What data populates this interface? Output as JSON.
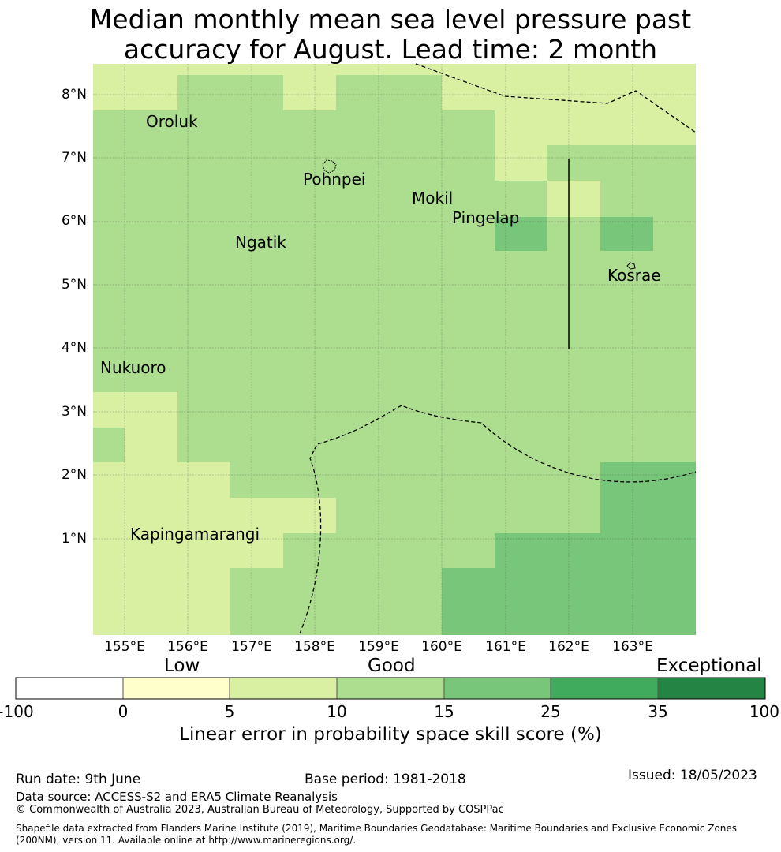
{
  "title": {
    "line1": "Median monthly mean sea level pressure past",
    "line2": "accuracy for August. Lead time: 2 month"
  },
  "map": {
    "lat_labels": [
      "8°N",
      "7°N",
      "6°N",
      "5°N",
      "4°N",
      "3°N",
      "2°N",
      "1°N"
    ],
    "lon_labels": [
      "155°E",
      "156°E",
      "157°E",
      "158°E",
      "159°E",
      "160°E",
      "161°E",
      "162°E",
      "163°E"
    ],
    "places": [
      {
        "name": "Oroluk"
      },
      {
        "name": "Pohnpei"
      },
      {
        "name": "Mokil"
      },
      {
        "name": "Pingelap"
      },
      {
        "name": "Ngatik"
      },
      {
        "name": "Kosrae"
      },
      {
        "name": "Nukuoro"
      },
      {
        "name": "Kapingamarangi"
      }
    ],
    "colors": {
      "ocean_default": "#addd8e",
      "low_bin": "#d9f0a3",
      "good_bin": "#addd8e",
      "good_high_bin": "#78c679",
      "boundary_line": "#000000"
    }
  },
  "colorbar": {
    "categories": {
      "low": "Low",
      "good": "Good",
      "exceptional": "Exceptional"
    },
    "ticks": [
      "-100",
      "0",
      "5",
      "10",
      "15",
      "25",
      "35",
      "100"
    ],
    "colors": [
      "#ffffff",
      "#ffffcc",
      "#d9f0a3",
      "#addd8e",
      "#78c679",
      "#41ab5d",
      "#238443"
    ],
    "label": "Linear error in probability space skill score (%)"
  },
  "footer": {
    "run_date": "Run date: 9th June",
    "base_period": "Base period: 1981-2018",
    "issued": "Issued: 18/05/2023",
    "data_source": "Data source: ACCESS-S2 and ERA5 Climate Reanalysis",
    "copyright": "© Commonwealth of Australia 2023, Australian Bureau of Meteorology, Supported by COSPPac",
    "shapefile": "Shapefile data extracted from Flanders Marine Institute (2019), Maritime Boundaries Geodatabase: Maritime Boundaries and Exclusive Economic Zones (200NM), version 11. Available online at http://www.marineregions.org/."
  }
}
